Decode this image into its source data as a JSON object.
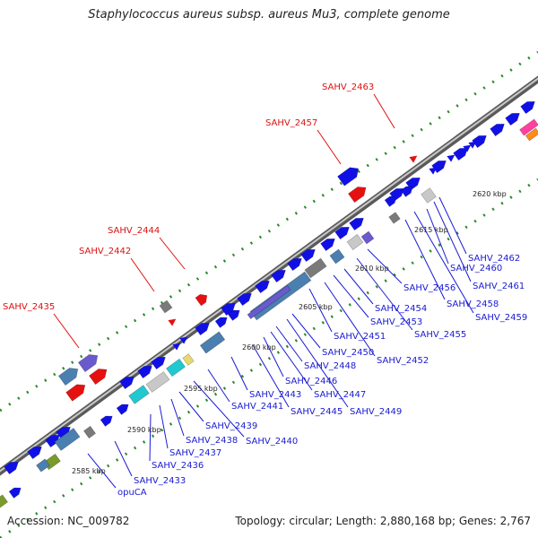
{
  "title": "Staphylococcus aureus subsp. aureus Mu3, complete genome",
  "footer": {
    "accession": "Accession: NC_009782",
    "summary": "Topology: circular; Length: 2,880,168 bp; Genes: 2,767"
  },
  "colors": {
    "backbone": "#8c8c8c",
    "gene_blue": "#1010e6",
    "gene_red": "#e61010",
    "label_blue": "#1a1ad4",
    "label_red": "#dd1111",
    "dots": "#2a8a2a",
    "steel": "#4a7fb0",
    "cyan": "#22c8d0",
    "gray_gene": "#7a7a7a",
    "light_gray_gene": "#c8c8c8",
    "purple": "#6a5acd",
    "olive": "#7a9a2a"
  },
  "ticks": [
    "2585 kbp",
    "2590 kbp",
    "2595 kbp",
    "2600 kbp",
    "2605 kbp",
    "2610 kbp",
    "2615 kbp",
    "2620 kbp"
  ],
  "labels_red": [
    "SAHV_2435",
    "SAHV_2442",
    "SAHV_2444",
    "SAHV_2457",
    "SAHV_2463"
  ],
  "labels_blue": [
    "opuCA",
    "SAHV_2433",
    "SAHV_2436",
    "SAHV_2437",
    "SAHV_2438",
    "SAHV_2439",
    "SAHV_2440",
    "SAHV_2441",
    "SAHV_2443",
    "SAHV_2445",
    "SAHV_2446",
    "SAHV_2447",
    "SAHV_2448",
    "SAHV_2449",
    "SAHV_2450",
    "SAHV_2451",
    "SAHV_2452",
    "SAHV_2453",
    "SAHV_2454",
    "SAHV_2455",
    "SAHV_2456",
    "SAHV_2458",
    "SAHV_2459",
    "SAHV_2460",
    "SAHV_2461",
    "SAHV_2462"
  ]
}
